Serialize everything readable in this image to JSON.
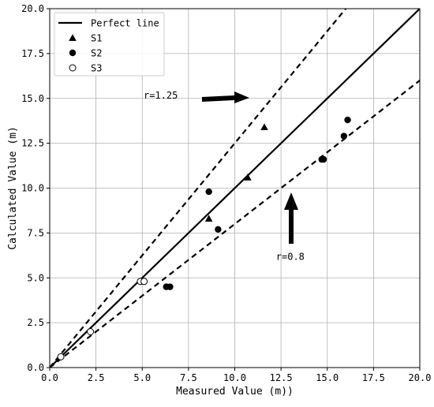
{
  "chart_data": {
    "type": "scatter",
    "xlabel": "Measured Value (m))",
    "ylabel": "Calculated Value (m)",
    "xlim": [
      0,
      20
    ],
    "ylim": [
      0,
      20
    ],
    "xticks": [
      "0.0",
      "2.5",
      "5.0",
      "7.5",
      "10.0",
      "12.5",
      "15.0",
      "17.5",
      "20.0"
    ],
    "yticks": [
      "0.0",
      "2.5",
      "5.0",
      "7.5",
      "10.0",
      "12.5",
      "15.0",
      "17.5",
      "20.0"
    ],
    "grid": true,
    "legend_position": "top-left",
    "reference_lines": [
      {
        "name": "Perfect line",
        "slope": 1.0,
        "style": "solid"
      },
      {
        "slope": 1.25,
        "style": "dashed"
      },
      {
        "slope": 0.8,
        "style": "dashed"
      }
    ],
    "annotations": [
      {
        "text": "r=1.25",
        "x": 6.0,
        "y": 15.0
      },
      {
        "text": "r=0.8",
        "x": 13.0,
        "y": 6.0
      }
    ],
    "series": [
      {
        "name": "S1",
        "marker": "triangle",
        "points": [
          [
            8.6,
            8.3
          ],
          [
            10.7,
            10.6
          ],
          [
            11.6,
            13.4
          ]
        ]
      },
      {
        "name": "S2",
        "marker": "circle-filled",
        "points": [
          [
            6.3,
            4.5
          ],
          [
            6.5,
            4.5
          ],
          [
            8.6,
            9.8
          ],
          [
            9.1,
            7.7
          ],
          [
            14.7,
            11.6
          ],
          [
            14.8,
            11.6
          ],
          [
            15.9,
            12.9
          ],
          [
            16.1,
            13.8
          ]
        ]
      },
      {
        "name": "S3",
        "marker": "circle-open",
        "points": [
          [
            0.6,
            0.6
          ],
          [
            2.2,
            2.0
          ],
          [
            4.9,
            4.8
          ],
          [
            5.1,
            4.8
          ]
        ]
      }
    ]
  }
}
